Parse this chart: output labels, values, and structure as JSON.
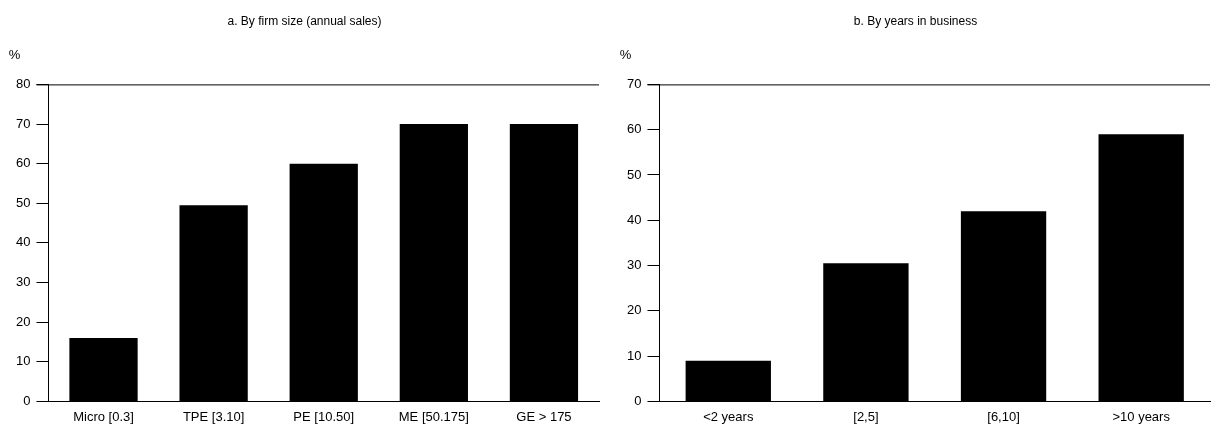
{
  "chart_data": [
    {
      "type": "bar",
      "title": "a. By firm size (annual sales)",
      "ylabel": "%",
      "categories": [
        "Micro [0.3]",
        "TPE [3.10]",
        "PE [10.50]",
        "ME [50.175]",
        "GE > 175"
      ],
      "values": [
        16,
        49.5,
        60,
        70,
        70
      ],
      "color": "#000000",
      "ylim": [
        0,
        80
      ],
      "yticks": [
        0,
        10,
        20,
        30,
        40,
        50,
        60,
        70,
        80
      ],
      "grid": false,
      "legend": false
    },
    {
      "type": "bar",
      "title": "b. By years in business",
      "ylabel": "%",
      "categories": [
        "<2 years",
        "[2,5]",
        "[6,10]",
        ">10 years"
      ],
      "values": [
        9,
        30.5,
        42,
        59
      ],
      "color": "#000000",
      "ylim": [
        0,
        70
      ],
      "yticks": [
        0,
        10,
        20,
        30,
        40,
        50,
        60,
        70
      ],
      "grid": false,
      "legend": false
    }
  ]
}
